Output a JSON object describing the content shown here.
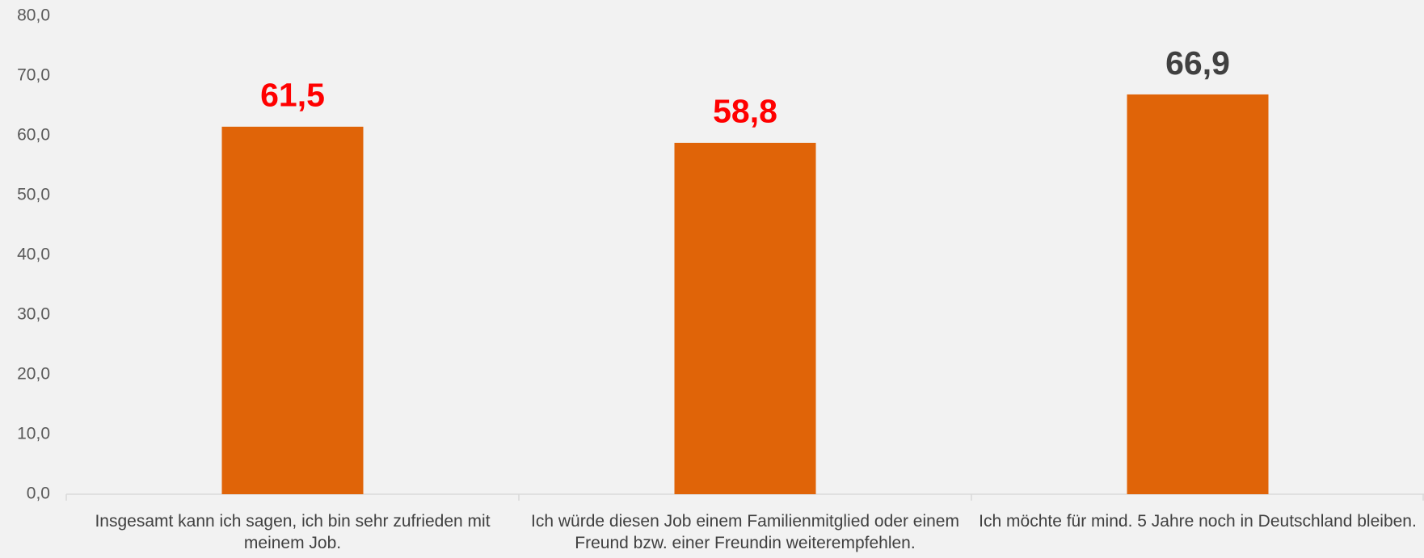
{
  "chart_data": {
    "type": "bar",
    "categories": [
      "Insgesamt kann ich sagen, ich bin sehr zufrieden mit meinem Job.",
      "Ich würde diesen Job einem Familienmitglied oder einem Freund bzw. einer Freundin weiterempfehlen.",
      "Ich möchte für mind. 5 Jahre noch in Deutschland bleiben."
    ],
    "values": [
      61.5,
      58.8,
      66.9
    ],
    "value_labels": [
      "61,5",
      "58,8",
      "66,9"
    ],
    "value_label_colors": [
      "#ff0000",
      "#ff0000",
      "#404040"
    ],
    "color": "#e06408",
    "ylim": [
      0,
      80
    ],
    "yticks": [
      {
        "value": 0,
        "label": "0,0"
      },
      {
        "value": 10,
        "label": "10,0"
      },
      {
        "value": 20,
        "label": "20,0"
      },
      {
        "value": 30,
        "label": "30,0"
      },
      {
        "value": 40,
        "label": "40,0"
      },
      {
        "value": 50,
        "label": "50,0"
      },
      {
        "value": 60,
        "label": "60,0"
      },
      {
        "value": 70,
        "label": "70,0"
      },
      {
        "value": 80,
        "label": "80,0"
      }
    ],
    "grid": false
  }
}
